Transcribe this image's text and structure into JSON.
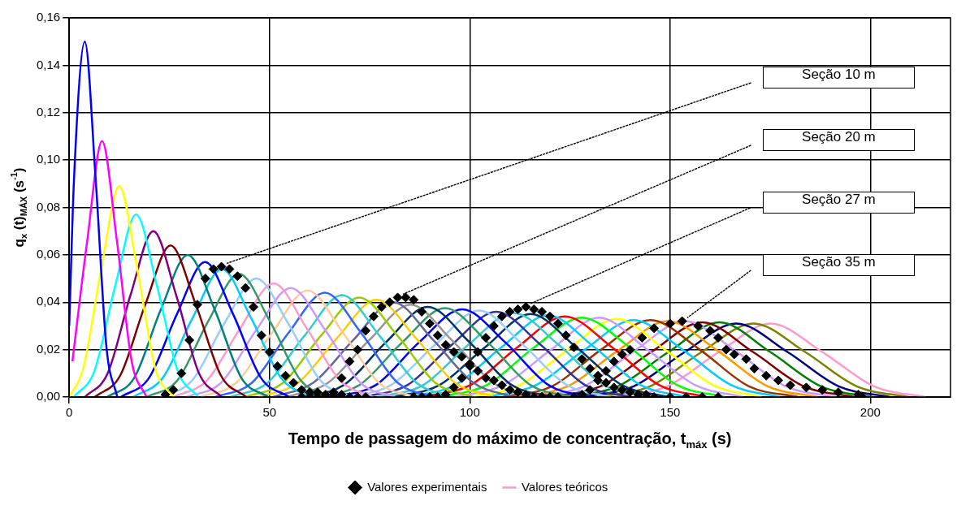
{
  "chart_data": {
    "type": "line",
    "xlabel": "Tempo de passagem do máximo de concentração, t$_{máx}$ (s)",
    "ylabel": "q$_{x}$ (t)$_{MÁX}$ (s$^{-1}$)",
    "xlim": [
      0,
      220
    ],
    "xticks": [
      0,
      50,
      100,
      150,
      200
    ],
    "ylim": [
      0,
      0.16
    ],
    "yticks": [
      {
        "value": 0,
        "label": "0,00"
      },
      {
        "value": 0.02,
        "label": "0,02"
      },
      {
        "value": 0.04,
        "label": "0,04"
      },
      {
        "value": 0.06,
        "label": "0,06"
      },
      {
        "value": 0.08,
        "label": "0,08"
      },
      {
        "value": 0.1,
        "label": "0,10"
      },
      {
        "value": 0.12,
        "label": "0,12"
      },
      {
        "value": 0.14,
        "label": "0,14"
      },
      {
        "value": 0.16,
        "label": "0,16"
      }
    ],
    "grid": true,
    "legend": "bottom",
    "annotations": [
      "Seção 10 m",
      "Seção 20 m",
      "Seção 27 m",
      "Seção 35 m"
    ],
    "series": [
      {
        "type": "scatter",
        "name": "Valores experimentais",
        "color": "#000000",
        "marker": "diamond",
        "x": [
          24,
          26,
          28,
          30,
          32,
          34,
          36,
          38,
          40,
          42,
          44,
          46,
          48,
          50,
          52,
          54,
          56,
          58,
          60,
          62,
          64,
          66,
          68,
          70,
          72,
          74
        ],
        "values": [
          0.001,
          0.003,
          0.01,
          0.024,
          0.039,
          0.05,
          0.054,
          0.055,
          0.054,
          0.051,
          0.046,
          0.038,
          0.026,
          0.019,
          0.013,
          0.009,
          0.006,
          0.003,
          0.002,
          0.002,
          0.001,
          0.001,
          0.001,
          0,
          0,
          0
        ]
      },
      {
        "type": "scatter",
        "color": "#000000",
        "marker": "diamond",
        "x": [
          58,
          60,
          62,
          64,
          66,
          68,
          70,
          72,
          74,
          76,
          78,
          80,
          82,
          84,
          86,
          88,
          90,
          92,
          94,
          96,
          98,
          100,
          102,
          104,
          106,
          108,
          110,
          112,
          114,
          116,
          118,
          120
        ],
        "values": [
          0,
          0,
          0,
          0,
          0.002,
          0.008,
          0.015,
          0.02,
          0.028,
          0.034,
          0.038,
          0.04,
          0.042,
          0.042,
          0.041,
          0.036,
          0.031,
          0.026,
          0.022,
          0.019,
          0.017,
          0.014,
          0.011,
          0.008,
          0.007,
          0.005,
          0.003,
          0.002,
          0.001,
          0,
          0,
          0
        ]
      },
      {
        "type": "scatter",
        "color": "#000000",
        "marker": "diamond",
        "x": [
          86,
          88,
          90,
          92,
          94,
          96,
          98,
          100,
          102,
          104,
          106,
          108,
          110,
          112,
          114,
          116,
          118,
          120,
          122,
          124,
          126,
          128,
          130,
          132,
          134,
          136,
          138,
          140,
          142,
          144,
          146,
          150,
          154,
          158,
          162
        ],
        "values": [
          0,
          0,
          0,
          0,
          0.001,
          0.004,
          0.008,
          0.013,
          0.019,
          0.025,
          0.03,
          0.034,
          0.036,
          0.037,
          0.038,
          0.037,
          0.036,
          0.034,
          0.031,
          0.026,
          0.021,
          0.016,
          0.012,
          0.009,
          0.006,
          0.004,
          0.003,
          0.002,
          0.001,
          0.001,
          0,
          0,
          0,
          0,
          0
        ]
      },
      {
        "type": "scatter",
        "color": "#000000",
        "marker": "diamond",
        "x": [
          114,
          118,
          122,
          126,
          128,
          130,
          132,
          134,
          136,
          138,
          140,
          143,
          146,
          150,
          153,
          157,
          160,
          162,
          164,
          166,
          169,
          171,
          174,
          177,
          180,
          184,
          188,
          192,
          197,
          198
        ],
        "values": [
          0,
          0,
          0,
          0,
          0.001,
          0.003,
          0.007,
          0.011,
          0.015,
          0.018,
          0.02,
          0.025,
          0.029,
          0.031,
          0.032,
          0.03,
          0.028,
          0.025,
          0.02,
          0.018,
          0.016,
          0.012,
          0.009,
          0.007,
          0.005,
          0.004,
          0.003,
          0.002,
          0.001,
          0
        ]
      },
      {
        "type": "line",
        "color": "#0000ff",
        "x": [
          0,
          1.2,
          3.9,
          6.6,
          9.3,
          12.0
        ],
        "values": [
          0.03,
          0.092,
          0.15,
          0.092,
          0.021,
          0
        ]
      },
      {
        "type": "line",
        "color": "#ff00ff",
        "x": [
          0.8,
          4.5,
          8.2,
          11.9,
          15.6,
          19.3
        ],
        "values": [
          0.015,
          0.066,
          0.108,
          0.066,
          0.015,
          0
        ]
      },
      {
        "type": "line",
        "color": "#ffff00",
        "x": [
          0,
          3.5,
          8,
          12.5,
          17,
          21.5,
          26
        ],
        "values": [
          0,
          0.012,
          0.054,
          0.089,
          0.054,
          0.012,
          0
        ]
      },
      {
        "type": "line",
        "color": "#00ffff",
        "x": [
          1.1,
          6.3,
          11.5,
          16.7,
          21.9,
          27.1,
          32.3
        ],
        "values": [
          0,
          0.011,
          0.047,
          0.077,
          0.047,
          0.011,
          0
        ]
      },
      {
        "type": "line",
        "color": "#800080",
        "x": [
          3.9,
          9.6,
          15.3,
          21.0,
          26.7,
          32.4,
          38.1
        ],
        "values": [
          0,
          0.01,
          0.043,
          0.07,
          0.043,
          0.01,
          0
        ]
      },
      {
        "type": "line",
        "color": "#800000",
        "x": [
          6.4,
          12.7,
          19.0,
          25.3,
          31.6,
          37.9,
          44.2
        ],
        "values": [
          0,
          0.009,
          0.039,
          0.064,
          0.039,
          0.009,
          0
        ]
      },
      {
        "type": "line",
        "color": "#008080",
        "x": [
          9.5,
          16.2,
          22.9,
          29.6,
          36.3,
          43.0,
          49.7
        ],
        "values": [
          0,
          0.008,
          0.037,
          0.06,
          0.037,
          0.008,
          0
        ]
      },
      {
        "type": "line",
        "color": "#0000ff",
        "x": [
          12.9,
          19.9,
          26.9,
          33.9,
          40.9,
          47.9,
          54.9
        ],
        "values": [
          0,
          0.008,
          0.035,
          0.057,
          0.035,
          0.008,
          0
        ]
      },
      {
        "type": "line",
        "color": "#00ccff",
        "x": [
          15.9,
          23.3,
          30.7,
          38.1,
          45.5,
          52.9,
          60.3
        ],
        "values": [
          0,
          0.008,
          0.033,
          0.054,
          0.033,
          0.008,
          0
        ]
      },
      {
        "type": "line",
        "color": "#339966",
        "x": [
          19.3,
          27.0,
          34.7,
          42.4,
          50.1,
          57.8,
          65.5
        ],
        "values": [
          0,
          0.007,
          0.032,
          0.052,
          0.032,
          0.007,
          0
        ]
      },
      {
        "type": "line",
        "color": "#99ccff",
        "x": [
          22.7,
          30.7,
          38.7,
          46.7,
          54.7,
          62.7,
          70.7
        ],
        "values": [
          0,
          0.007,
          0.031,
          0.05,
          0.031,
          0.007,
          0
        ]
      },
      {
        "type": "line",
        "color": "#ff99cc",
        "x": [
          26.1,
          34.4,
          42.7,
          51.0,
          59.3,
          67.6,
          75.9
        ],
        "values": [
          0,
          0.007,
          0.029,
          0.048,
          0.029,
          0.007,
          0
        ]
      },
      {
        "type": "line",
        "color": "#cc99ff",
        "x": [
          29.2,
          37.9,
          46.6,
          55.3,
          64.0,
          72.7,
          81.4
        ],
        "values": [
          0,
          0.006,
          0.028,
          0.046,
          0.028,
          0.006,
          0
        ]
      },
      {
        "type": "line",
        "color": "#ffcc99",
        "x": [
          32.8,
          41.7,
          50.6,
          59.5,
          68.4,
          77.3,
          86.2
        ],
        "values": [
          0,
          0.006,
          0.027,
          0.045,
          0.027,
          0.006,
          0
        ]
      },
      {
        "type": "line",
        "color": "#3366ff",
        "x": [
          36.5,
          45.6,
          54.7,
          63.8,
          72.9,
          82.0,
          91.1
        ],
        "values": [
          0,
          0.006,
          0.027,
          0.044,
          0.027,
          0.006,
          0
        ]
      },
      {
        "type": "line",
        "color": "#33cccc",
        "x": [
          40.2,
          49.5,
          58.8,
          68.1,
          77.4,
          86.7,
          96.0
        ],
        "values": [
          0,
          0.006,
          0.026,
          0.043,
          0.026,
          0.006,
          0
        ]
      },
      {
        "type": "line",
        "color": "#99cc00",
        "x": [
          43.9,
          53.4,
          62.9,
          72.4,
          81.9,
          91.4,
          100.9
        ],
        "values": [
          0,
          0.006,
          0.026,
          0.042,
          0.026,
          0.006,
          0
        ]
      },
      {
        "type": "line",
        "color": "#ffcc00",
        "x": [
          47.3,
          57.1,
          66.9,
          76.7,
          86.5,
          96.3,
          106.1
        ],
        "values": [
          0,
          0.006,
          0.025,
          0.041,
          0.025,
          0.006,
          0
        ]
      },
      {
        "type": "line",
        "color": "#666699",
        "x": [
          50.9,
          60.9,
          70.9,
          80.9,
          90.9,
          100.9,
          110.9
        ],
        "values": [
          0,
          0.006,
          0.024,
          0.04,
          0.024,
          0.006,
          0
        ]
      },
      {
        "type": "line",
        "color": "#969696",
        "x": [
          54.3,
          64.6,
          74.9,
          85.2,
          95.5,
          105.8,
          116.1
        ],
        "values": [
          0,
          0.006,
          0.024,
          0.039,
          0.024,
          0.006,
          0
        ]
      },
      {
        "type": "line",
        "color": "#003366",
        "x": [
          58.0,
          68.5,
          79.0,
          89.5,
          100.0,
          110.5,
          121.0
        ],
        "values": [
          0,
          0.005,
          0.023,
          0.038,
          0.023,
          0.005,
          0
        ]
      },
      {
        "type": "line",
        "color": "#339966",
        "x": [
          61.7,
          72.4,
          83.1,
          93.8,
          104.5,
          115.2,
          125.9
        ],
        "values": [
          0,
          0.005,
          0.023,
          0.0375,
          0.023,
          0.005,
          0
        ]
      },
      {
        "type": "line",
        "color": "#0000ff",
        "x": [
          65.7,
          76.5,
          87.3,
          98.1,
          108.9,
          119.7,
          130.5
        ],
        "values": [
          0,
          0.005,
          0.023,
          0.037,
          0.023,
          0.005,
          0
        ]
      },
      {
        "type": "line",
        "color": "#99ccff",
        "x": [
          69.3,
          80.3,
          91.3,
          102.3,
          113.3,
          124.3,
          135.3
        ],
        "values": [
          0,
          0.005,
          0.022,
          0.0365,
          0.022,
          0.005,
          0
        ]
      },
      {
        "type": "line",
        "color": "#333399",
        "x": [
          73.3,
          84.4,
          95.5,
          106.6,
          117.7,
          128.8,
          139.9
        ],
        "values": [
          0,
          0.005,
          0.022,
          0.036,
          0.022,
          0.005,
          0
        ]
      },
      {
        "type": "line",
        "color": "#33cccc",
        "x": [
          77.0,
          88.3,
          99.6,
          110.9,
          122.2,
          133.5,
          144.8
        ],
        "values": [
          0,
          0.005,
          0.022,
          0.0355,
          0.022,
          0.005,
          0
        ]
      },
      {
        "type": "line",
        "color": "#003366",
        "x": [
          81.0,
          92.4,
          103.8,
          115.2,
          126.6,
          138.0,
          149.4
        ],
        "values": [
          0,
          0.005,
          0.021,
          0.035,
          0.021,
          0.005,
          0
        ]
      },
      {
        "type": "line",
        "color": "#00ccff",
        "x": [
          84.7,
          96.3,
          107.9,
          119.5,
          131.1,
          142.7,
          154.3
        ],
        "values": [
          0,
          0.005,
          0.021,
          0.0345,
          0.021,
          0.005,
          0
        ]
      },
      {
        "type": "line",
        "color": "#ff0000",
        "x": [
          88.3,
          100.1,
          111.9,
          123.7,
          135.5,
          147.3,
          159.1
        ],
        "values": [
          0,
          0.005,
          0.021,
          0.034,
          0.021,
          0.005,
          0
        ]
      },
      {
        "type": "line",
        "color": "#00ff00",
        "x": [
          92.3,
          104.2,
          116.1,
          128.0,
          139.9,
          151.8,
          163.7
        ],
        "values": [
          0,
          0.005,
          0.021,
          0.0335,
          0.021,
          0.005,
          0
        ]
      },
      {
        "type": "line",
        "color": "#cc99ff",
        "x": [
          96.3,
          108.3,
          120.3,
          132.3,
          144.3,
          156.3,
          168.3
        ],
        "values": [
          0,
          0.005,
          0.02,
          0.0335,
          0.02,
          0.005,
          0
        ]
      },
      {
        "type": "line",
        "color": "#ffff00",
        "x": [
          100.3,
          112.4,
          124.5,
          136.6,
          148.7,
          160.8,
          172.9
        ],
        "values": [
          0,
          0.005,
          0.02,
          0.033,
          0.02,
          0.005,
          0
        ]
      },
      {
        "type": "line",
        "color": "#00ccff",
        "x": [
          104.3,
          116.5,
          128.7,
          140.9,
          153.1,
          165.3,
          177.5
        ],
        "values": [
          0,
          0.005,
          0.02,
          0.0325,
          0.02,
          0.005,
          0
        ]
      },
      {
        "type": "line",
        "color": "#993300",
        "x": [
          108.2,
          120.5,
          132.8,
          145.1,
          157.4,
          169.7,
          182.0
        ],
        "values": [
          0,
          0.0045,
          0.02,
          0.0325,
          0.02,
          0.0045,
          0
        ]
      },
      {
        "type": "line",
        "color": "#ff9900",
        "x": [
          111.9,
          124.4,
          136.9,
          149.4,
          161.9,
          174.4,
          186.9
        ],
        "values": [
          0,
          0.0045,
          0.0195,
          0.032,
          0.0195,
          0.0045,
          0
        ]
      },
      {
        "type": "line",
        "color": "#cc99ff",
        "x": [
          115.9,
          128.5,
          141.1,
          153.7,
          166.3,
          178.9,
          191.5
        ],
        "values": [
          0,
          0.0045,
          0.0195,
          0.032,
          0.0195,
          0.0045,
          0
        ]
      },
      {
        "type": "line",
        "color": "#800000",
        "x": [
          119.9,
          132.6,
          145.3,
          158.0,
          170.7,
          183.4,
          196.1
        ],
        "values": [
          0,
          0.0045,
          0.019,
          0.0315,
          0.019,
          0.0045,
          0
        ]
      },
      {
        "type": "line",
        "color": "#008000",
        "x": [
          124.2,
          136.9,
          149.6,
          162.3,
          175.0,
          187.7,
          200.4
        ],
        "values": [
          0,
          0.0045,
          0.019,
          0.0315,
          0.019,
          0.0045,
          0
        ]
      },
      {
        "type": "line",
        "color": "#000080",
        "x": [
          128.1,
          140.9,
          153.7,
          166.5,
          179.3,
          192.1,
          204.9
        ],
        "values": [
          0,
          0.0045,
          0.019,
          0.031,
          0.019,
          0.0045,
          0
        ]
      },
      {
        "type": "line",
        "color": "#808000",
        "x": [
          132.1,
          145.0,
          157.9,
          170.8,
          183.7,
          196.6,
          209.5
        ],
        "values": [
          0,
          0.0045,
          0.019,
          0.031,
          0.019,
          0.0045,
          0
        ]
      },
      {
        "type": "line",
        "name": "Valores teóricos",
        "color": "#ff99cc",
        "x": [
          136.4,
          149.3,
          162.2,
          175.1,
          188.0,
          200.9,
          213.8
        ],
        "values": [
          0,
          0.0045,
          0.019,
          0.031,
          0.019,
          0.0045,
          0
        ]
      }
    ]
  }
}
